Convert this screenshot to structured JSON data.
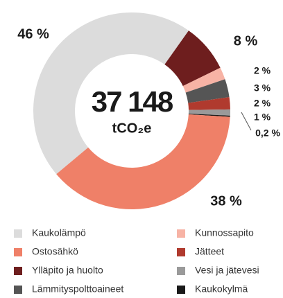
{
  "chart_data": {
    "type": "donut",
    "center_text": "37 148",
    "center_unit": "tCO₂e",
    "series": [
      {
        "name": "Kaukolämpö",
        "color": "#dcdcdc",
        "value": 46,
        "value_label": "46 %"
      },
      {
        "name": "Ostosähkö",
        "color": "#ef8068",
        "value": 38,
        "value_label": "38 %"
      },
      {
        "name": "Ylläpito ja huolto",
        "color": "#6e1e1e",
        "value": 8,
        "value_label": "8 %"
      },
      {
        "name": "Lämmityspolttoaineet",
        "color": "#555555",
        "value": 3,
        "value_label": "3 %"
      },
      {
        "name": "Kunnossapito",
        "color": "#f7b3a5",
        "value": 2,
        "value_label": "2 %"
      },
      {
        "name": "Jätteet",
        "color": "#b03a2e",
        "value": 2,
        "value_label": "2 %"
      },
      {
        "name": "Vesi ja jätevesi",
        "color": "#9a9a9a",
        "value": 1,
        "value_label": "1 %"
      },
      {
        "name": "Kaukokylmä",
        "color": "#1a1a1a",
        "value": 0.2,
        "value_label": "0,2 %"
      }
    ]
  }
}
